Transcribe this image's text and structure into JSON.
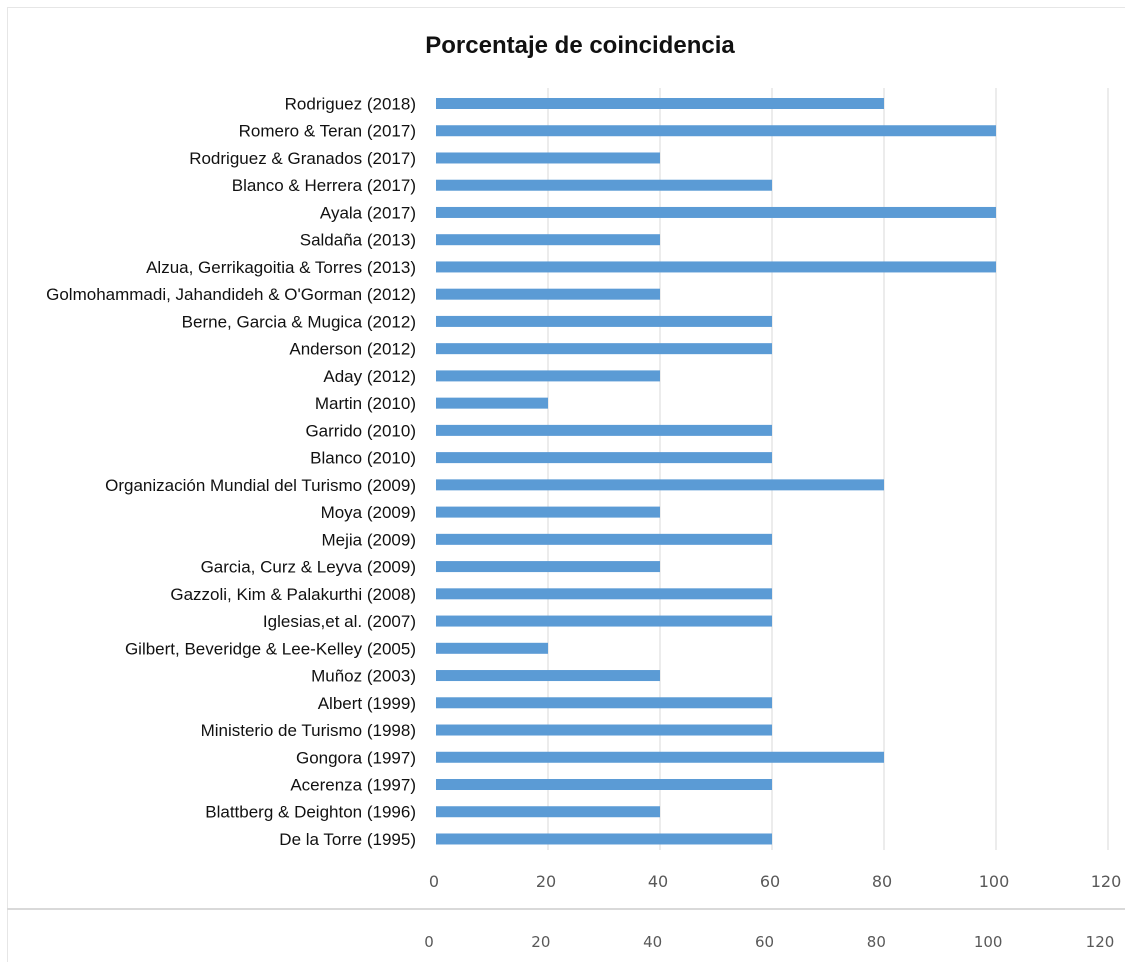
{
  "chart_data": {
    "type": "bar",
    "orientation": "horizontal",
    "title": "Porcentaje de coincidencia",
    "xlabel": "",
    "ylabel": "",
    "xlim": [
      0,
      120
    ],
    "ticks": [
      0,
      20,
      40,
      60,
      80,
      100,
      120
    ],
    "tick_labels": [
      "0",
      "20",
      "40",
      "60",
      "80",
      "100",
      "120"
    ],
    "grid": true,
    "bar_color": "#5b9bd5",
    "categories": [
      "Rodriguez (2018)",
      "Romero & Teran (2017)",
      "Rodriguez & Granados (2017)",
      "Blanco & Herrera (2017)",
      "Ayala (2017)",
      "Saldaña (2013)",
      "Alzua, Gerrikagoitia & Torres (2013)",
      "Golmohammadi, Jahandideh & O'Gorman (2012)",
      "Berne, Garcia & Mugica (2012)",
      "Anderson (2012)",
      "Aday (2012)",
      "Martin (2010)",
      "Garrido (2010)",
      "Blanco (2010)",
      "Organización Mundial del Turismo (2009)",
      "Moya (2009)",
      "Mejia (2009)",
      "Garcia, Curz & Leyva (2009)",
      "Gazzoli, Kim & Palakurthi (2008)",
      "Iglesias,et al. (2007)",
      "Gilbert, Beveridge & Lee-Kelley (2005)",
      "Muñoz (2003)",
      "Albert (1999)",
      "Ministerio de Turismo (1998)",
      "Gongora (1997)",
      "Acerenza (1997)",
      "Blattberg & Deighton (1996)",
      "De la Torre (1995)"
    ],
    "values": [
      80,
      100,
      40,
      60,
      100,
      40,
      100,
      40,
      60,
      60,
      40,
      20,
      60,
      60,
      80,
      40,
      60,
      40,
      60,
      60,
      20,
      40,
      60,
      60,
      80,
      60,
      40,
      60
    ],
    "secondary_axis_tick_labels": [
      "0",
      "20",
      "40",
      "60",
      "80",
      "100",
      "120"
    ]
  }
}
